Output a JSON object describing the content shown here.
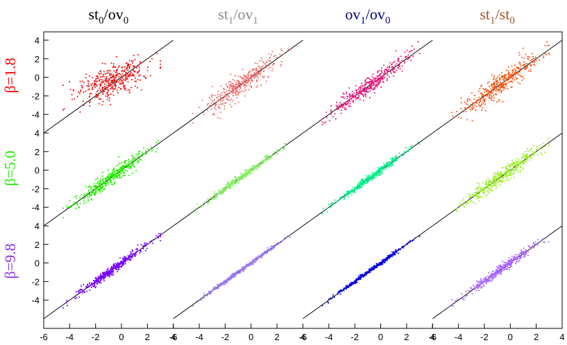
{
  "chart_data": {
    "type": "scatter",
    "columns": [
      {
        "base": "st",
        "sub1": "0",
        "mid": "/ov",
        "sub2": "0",
        "color": "#000000"
      },
      {
        "base": "st",
        "sub1": "1",
        "mid": "/ov",
        "sub2": "1",
        "color": "#8c8c8c"
      },
      {
        "base": "ov",
        "sub1": "1",
        "mid": "/ov",
        "sub2": "0",
        "color": "#000080"
      },
      {
        "base": "st",
        "sub1": "1",
        "mid": "/st",
        "sub2": "0",
        "color": "#a0522d"
      }
    ],
    "rows": [
      {
        "label": "β=1.8",
        "color": "#ff0000"
      },
      {
        "label": "β=5.0",
        "color": "#22ee00"
      },
      {
        "label": "β=9.8",
        "color": "#8833ee"
      }
    ],
    "panel_colors": [
      [
        "#ee1111",
        "#f07070",
        "#e8157a",
        "#ff5511"
      ],
      [
        "#22ee00",
        "#88ee66",
        "#00ee88",
        "#99ee22"
      ],
      [
        "#7700ff",
        "#9977ee",
        "#0000dd",
        "#aa66ff"
      ]
    ],
    "panel_spread": [
      [
        1.1,
        0.7,
        0.55,
        0.75
      ],
      [
        0.5,
        0.2,
        0.22,
        0.5
      ],
      [
        0.28,
        0.12,
        0.12,
        0.3
      ]
    ],
    "points_per_panel": 400,
    "x_range": [
      -4,
      2.5
    ],
    "xlim": [
      -6,
      4
    ],
    "ylim": [
      -6,
      4
    ],
    "x_ticks": [
      -6,
      -4,
      -2,
      0,
      2,
      4
    ],
    "x_tick_labels": [
      "-6",
      "-4",
      "-2",
      "0",
      "2",
      "4"
    ],
    "y_ticks": [
      -4,
      -2,
      0,
      2,
      4
    ],
    "y_tick_labels": [
      "-4",
      "-2",
      "0",
      "2",
      "4"
    ],
    "reference_line": "y = x"
  }
}
